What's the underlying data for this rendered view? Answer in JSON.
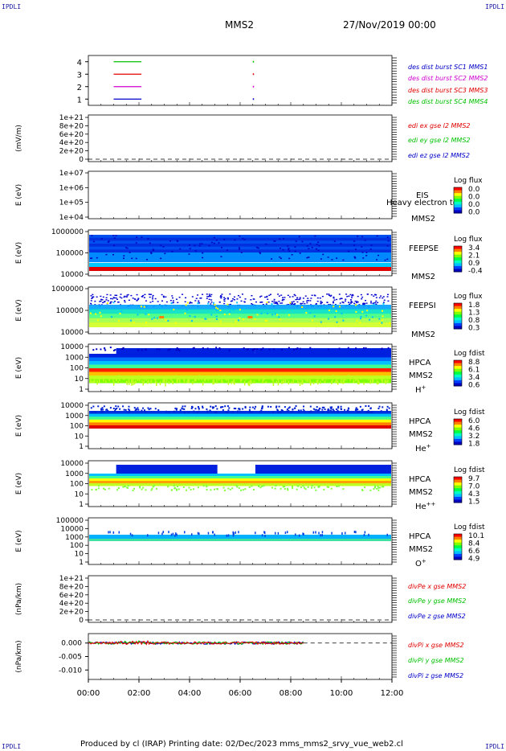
{
  "corner_label": "IPDLI",
  "header": {
    "title": "MMS2",
    "date": "27/Nov/2019 00:00"
  },
  "footer": "Produced by cl (IRAP)   Printing date: 02/Dec/2023   mms_mms2_srvy_vue_web2.cl",
  "x_ticks": [
    "00:00",
    "02:00",
    "04:00",
    "06:00",
    "08:00",
    "10:00",
    "12:00"
  ],
  "colors": {
    "mms1": "#0000c8",
    "mms2": "#d000d0",
    "mms3": "#e00000",
    "mms4": "#00c000",
    "x": "#e00000",
    "y": "#00c000",
    "z": "#0000c8"
  },
  "chart_data": [
    {
      "type": "line",
      "panel": "burst",
      "y_ticks": [
        "1",
        "2",
        "3",
        "4"
      ],
      "ylim": [
        0.5,
        4.5
      ],
      "series": [
        {
          "name": "des dist burst SC1 MMS1",
          "y": 1,
          "color": "#0000c8",
          "x": [
            1.0,
            2.1
          ]
        },
        {
          "name": "des dist burst SC2 MMS2",
          "y": 2,
          "color": "#d000d0",
          "x": [
            1.0,
            2.1
          ]
        },
        {
          "name": "des dist burst SC3 MMS3",
          "y": 3,
          "color": "#e00000",
          "x": [
            1.0,
            2.1
          ]
        },
        {
          "name": "des dist burst SC4 MMS4",
          "y": 4,
          "color": "#00c000",
          "x": [
            1.0,
            2.1
          ]
        }
      ]
    },
    {
      "type": "line",
      "panel": "edi",
      "ylabel": "(mV/m)",
      "y_ticks": [
        "1e+21",
        "8e+20",
        "6e+20",
        "4e+20",
        "2e+20",
        "0"
      ],
      "series": [
        {
          "name": "edi ex gse l2 MMS2",
          "color": "#e00000"
        },
        {
          "name": "edi ey gse l2 MMS2",
          "color": "#00c000"
        },
        {
          "name": "edi ez gse l2 MMS2",
          "color": "#0000c8"
        }
      ]
    },
    {
      "type": "heatmap",
      "panel": "eis",
      "ylabel": "E (eV)",
      "y_ticks": [
        "1e+07",
        "1e+06",
        "1e+05",
        "1e+04"
      ],
      "labels": [
        "EIS",
        "Heavy electron to",
        "MMS2"
      ],
      "colorbar": {
        "title": "Log flux",
        "ticks": [
          "0.0",
          "0.0",
          "0.0",
          "0.0"
        ]
      }
    },
    {
      "type": "heatmap",
      "panel": "feepse",
      "ylabel": "E (eV)",
      "y_ticks": [
        "1000000",
        "100000",
        "10000"
      ],
      "labels": [
        "FEEPSE",
        "MMS2"
      ],
      "colorbar": {
        "title": "Log flux",
        "ticks": [
          "3.4",
          "2.1",
          "0.9",
          "-0.4"
        ]
      }
    },
    {
      "type": "heatmap",
      "panel": "feepsi",
      "ylabel": "E (eV)",
      "y_ticks": [
        "1000000",
        "100000",
        "10000"
      ],
      "labels": [
        "FEEPSI",
        "MMS2"
      ],
      "colorbar": {
        "title": "Log flux",
        "ticks": [
          "1.8",
          "1.3",
          "0.8",
          "0.3"
        ]
      }
    },
    {
      "type": "heatmap",
      "panel": "hpca_h",
      "ylabel": "E (eV)",
      "y_ticks": [
        "10000",
        "1000",
        "100",
        "10",
        "1"
      ],
      "labels": [
        "HPCA",
        "MMS2",
        "H+"
      ],
      "colorbar": {
        "title": "Log fdist",
        "ticks": [
          "8.8",
          "6.1",
          "3.4",
          "0.6"
        ]
      }
    },
    {
      "type": "heatmap",
      "panel": "hpca_he",
      "ylabel": "E (eV)",
      "y_ticks": [
        "10000",
        "1000",
        "100",
        "10",
        "1"
      ],
      "labels": [
        "HPCA",
        "MMS2",
        "He+"
      ],
      "colorbar": {
        "title": "Log fdist",
        "ticks": [
          "6.0",
          "4.6",
          "3.2",
          "1.8"
        ]
      }
    },
    {
      "type": "heatmap",
      "panel": "hpca_hepp",
      "ylabel": "E (eV)",
      "y_ticks": [
        "10000",
        "1000",
        "100",
        "10",
        "1"
      ],
      "labels": [
        "HPCA",
        "MMS2",
        "He++"
      ],
      "colorbar": {
        "title": "Log fdist",
        "ticks": [
          "9.7",
          "7.0",
          "4.3",
          "1.5"
        ]
      }
    },
    {
      "type": "heatmap",
      "panel": "hpca_o",
      "ylabel": "E (eV)",
      "y_ticks": [
        "100000",
        "10000",
        "1000",
        "100",
        "10",
        "1"
      ],
      "labels": [
        "HPCA",
        "MMS2",
        "O+"
      ],
      "colorbar": {
        "title": "Log fdist",
        "ticks": [
          "10.1",
          "8.4",
          "6.6",
          "4.9"
        ]
      }
    },
    {
      "type": "line",
      "panel": "divpe",
      "ylabel": "(nPa/km)",
      "y_ticks": [
        "1e+21",
        "8e+20",
        "6e+20",
        "4e+20",
        "2e+20",
        "0"
      ],
      "series": [
        {
          "name": "divPe x gse MMS2",
          "color": "#e00000"
        },
        {
          "name": "divPe y gse MMS2",
          "color": "#00c000"
        },
        {
          "name": "divPe z gse MMS2",
          "color": "#0000c8"
        }
      ]
    },
    {
      "type": "line",
      "panel": "divpi",
      "ylabel": "(nPa/km)",
      "y_ticks": [
        "0.000",
        "-0.005",
        "-0.010"
      ],
      "ylim": [
        -0.0135,
        0.0035
      ],
      "x_range_hours": [
        0,
        8.5
      ],
      "series": [
        {
          "name": "divPi x gse MMS2",
          "color": "#e00000"
        },
        {
          "name": "divPi y gse MMS2",
          "color": "#00c000"
        },
        {
          "name": "divPi z gse MMS2",
          "color": "#0000c8"
        }
      ]
    }
  ]
}
